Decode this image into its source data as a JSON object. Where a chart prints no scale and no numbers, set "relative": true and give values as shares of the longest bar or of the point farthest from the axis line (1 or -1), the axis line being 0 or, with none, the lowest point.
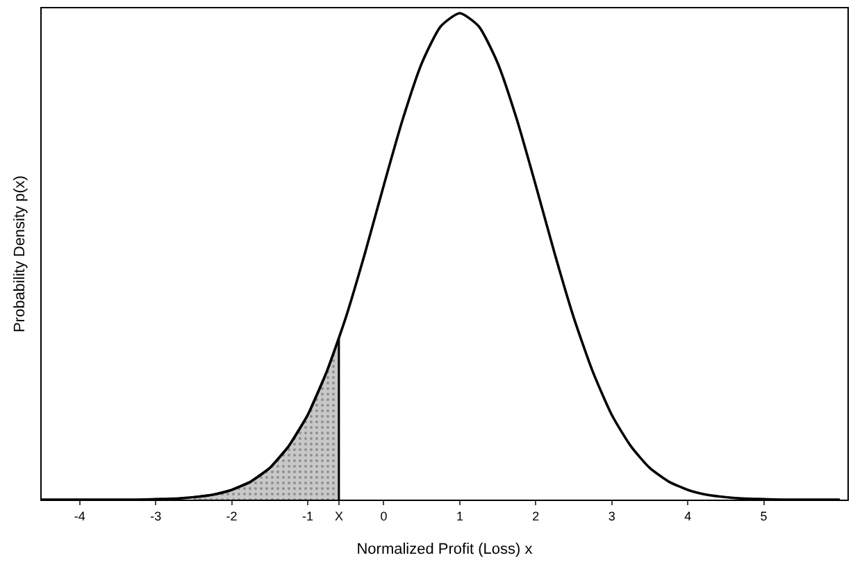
{
  "chart_data": {
    "type": "line",
    "relative": true,
    "xlabel": "Normalized Profit (Loss) x",
    "ylabel": "Probability Density p(x)",
    "xlim": [
      -4.5,
      6.1
    ],
    "xticks": [
      -4,
      -3,
      -2,
      -1,
      {
        "value": -0.59,
        "label": "X"
      },
      0,
      1,
      2,
      3,
      4,
      5
    ],
    "series": [
      {
        "color": "#000000",
        "x": [
          -4.5,
          -4.25,
          -4,
          -3.75,
          -3.5,
          -3.25,
          -3,
          -2.75,
          -2.5,
          -2.25,
          -2,
          -1.75,
          -1.5,
          -1.25,
          -1,
          -0.75,
          -0.5,
          -0.25,
          0,
          0.25,
          0.5,
          0.75,
          1,
          1.25,
          1.5,
          1.75,
          2,
          2.25,
          2.5,
          2.75,
          3,
          3.25,
          3.5,
          3.75,
          4,
          4.25,
          4.5,
          4.75,
          5,
          5.25,
          5.5,
          5.75,
          6
        ],
        "values": [
          0,
          0,
          0,
          0,
          0,
          0,
          0.001,
          0.002,
          0.005,
          0.01,
          0.02,
          0.037,
          0.065,
          0.11,
          0.174,
          0.263,
          0.374,
          0.505,
          0.646,
          0.782,
          0.897,
          0.973,
          1,
          0.973,
          0.897,
          0.782,
          0.646,
          0.505,
          0.374,
          0.263,
          0.174,
          0.11,
          0.065,
          0.037,
          0.02,
          0.01,
          0.005,
          0.002,
          0.001,
          0,
          0,
          0,
          0
        ]
      },
      {
        "type": "area",
        "color": "#c8c8c8",
        "x": [
          -2.5,
          -2.25,
          -2,
          -1.75,
          -1.5,
          -1.25,
          -1,
          -0.75,
          -0.59,
          -0.59
        ],
        "values": [
          0.005,
          0.01,
          0.02,
          0.037,
          0.065,
          0.11,
          0.174,
          0.263,
          0.332,
          0
        ]
      }
    ]
  }
}
